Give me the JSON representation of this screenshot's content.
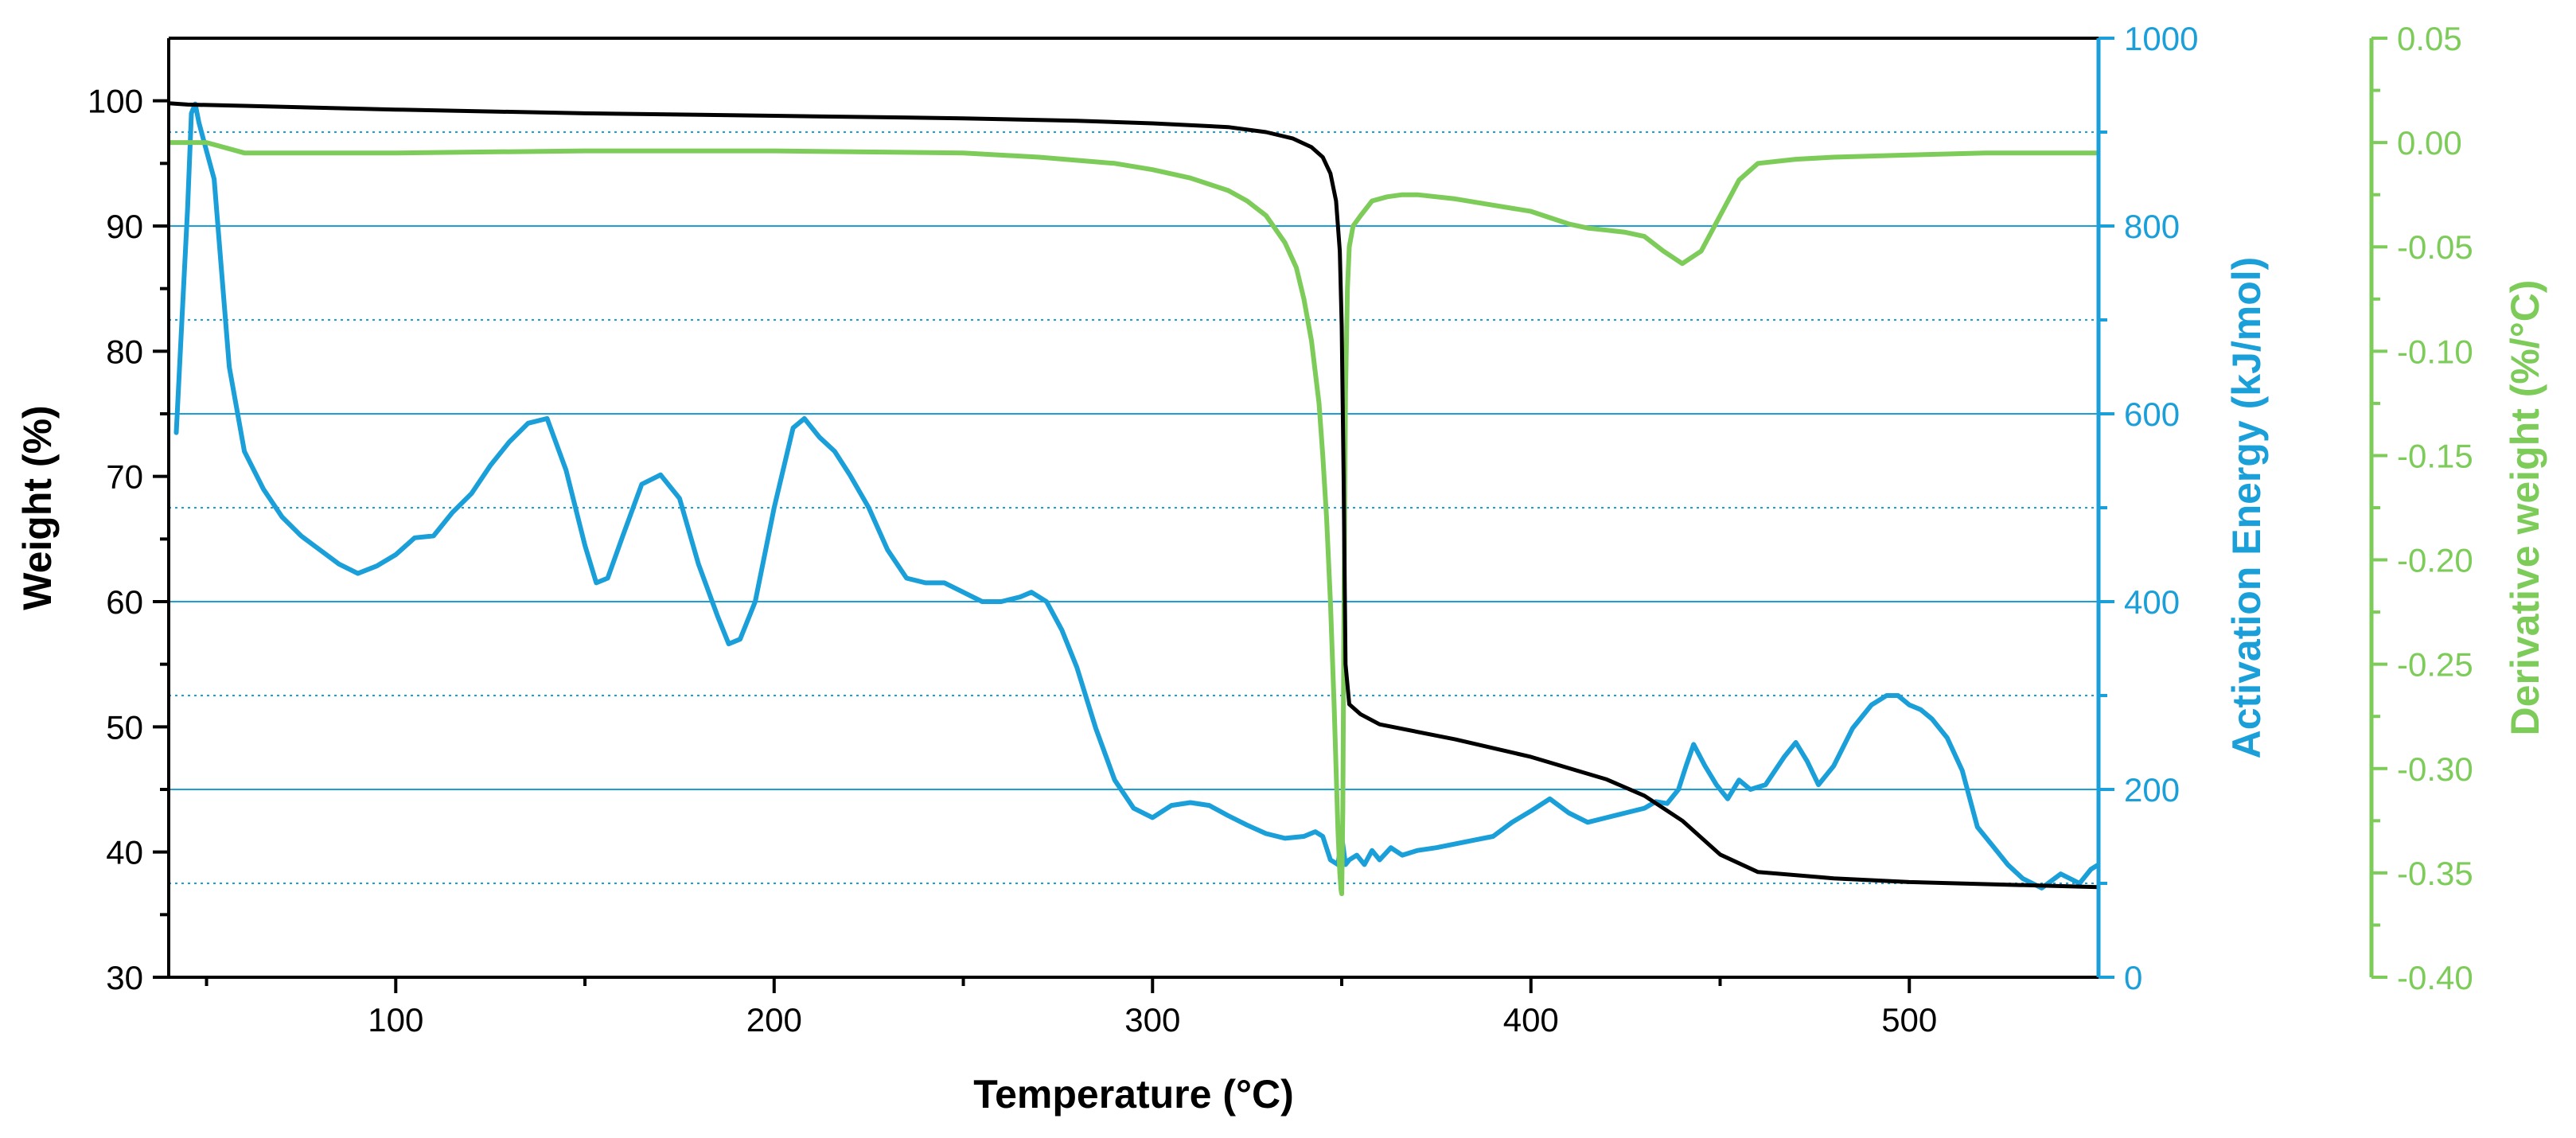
{
  "chart_data": {
    "type": "line",
    "xlabel": "Temperature (°C)",
    "xlim": [
      40,
      550
    ],
    "x_ticks": [
      "100",
      "200",
      "300",
      "400",
      "500"
    ],
    "axes": {
      "weight": {
        "label": "Weight (%)",
        "lim": [
          30,
          105
        ],
        "ticks": [
          "30",
          "40",
          "50",
          "60",
          "70",
          "80",
          "90",
          "100"
        ],
        "color": "#000000"
      },
      "activation": {
        "label": "Activation Energy (kJ/mol)",
        "lim": [
          0,
          1000
        ],
        "ticks": [
          "0",
          "200",
          "400",
          "600",
          "800",
          "1000"
        ],
        "color": "#1a9fd9"
      },
      "derivative": {
        "label": "Derivative weight (%/°C)",
        "lim": [
          -0.4,
          0.05
        ],
        "ticks": [
          "0.05",
          "0.00",
          "-0.05",
          "-0.10",
          "-0.15",
          "-0.20",
          "-0.25",
          "-0.30",
          "-0.35",
          "-0.40"
        ],
        "color": "#7dcc5a"
      }
    },
    "grid": {
      "solid_activation_values": [
        200,
        400,
        600,
        800
      ],
      "dotted_activation_values": [
        100,
        300,
        500,
        700,
        900
      ]
    },
    "series": [
      {
        "name": "Weight",
        "axis": "weight",
        "color": "#000000",
        "x": [
          40,
          45,
          60,
          100,
          150,
          200,
          250,
          280,
          300,
          320,
          330,
          337,
          342,
          345,
          347,
          348.5,
          349.5,
          350,
          350.5,
          351,
          352,
          355,
          360,
          380,
          400,
          420,
          430,
          440,
          450,
          460,
          480,
          500,
          525,
          550
        ],
        "y": [
          99.8,
          99.7,
          99.6,
          99.3,
          99.0,
          98.8,
          98.6,
          98.4,
          98.2,
          97.9,
          97.5,
          97.0,
          96.3,
          95.5,
          94.2,
          92.0,
          88.0,
          82.0,
          70.0,
          55.0,
          51.8,
          51.0,
          50.2,
          49.0,
          47.6,
          45.8,
          44.5,
          42.5,
          39.8,
          38.4,
          37.9,
          37.6,
          37.4,
          37.2
        ]
      },
      {
        "name": "Activation Energy",
        "axis": "activation",
        "color": "#1a9fd9",
        "x": [
          42,
          43.5,
          45,
          46,
          47,
          48,
          50,
          52,
          54,
          56,
          60,
          65,
          70,
          75,
          80,
          85,
          90,
          95,
          100,
          105,
          110,
          115,
          120,
          125,
          130,
          135,
          140,
          145,
          150,
          153,
          156,
          160,
          165,
          170,
          175,
          180,
          185,
          188,
          191,
          195,
          200,
          205,
          208,
          212,
          216,
          220,
          225,
          230,
          235,
          240,
          245,
          250,
          255,
          260,
          265,
          268,
          272,
          276,
          280,
          285,
          290,
          295,
          300,
          305,
          310,
          315,
          320,
          325,
          330,
          335,
          340,
          343,
          345,
          347,
          349,
          350,
          351,
          352,
          354,
          356,
          358,
          360,
          363,
          366,
          370,
          375,
          380,
          385,
          390,
          395,
          400,
          405,
          410,
          415,
          420,
          425,
          430,
          433,
          436,
          439,
          441,
          443,
          446,
          449,
          452,
          455,
          458,
          462,
          467,
          470,
          473,
          476,
          480,
          485,
          490,
          494,
          497,
          500,
          503,
          506,
          510,
          514,
          518,
          522,
          526,
          530,
          535,
          540,
          545,
          548,
          550
        ],
        "y": [
          580,
          700,
          820,
          920,
          930,
          910,
          880,
          850,
          750,
          650,
          560,
          520,
          490,
          470,
          455,
          440,
          430,
          438,
          450,
          468,
          470,
          495,
          515,
          545,
          570,
          590,
          595,
          540,
          460,
          420,
          425,
          470,
          525,
          535,
          510,
          440,
          385,
          355,
          360,
          400,
          500,
          585,
          595,
          575,
          560,
          535,
          500,
          455,
          425,
          420,
          420,
          410,
          400,
          400,
          405,
          410,
          400,
          370,
          330,
          265,
          210,
          180,
          170,
          183,
          186,
          183,
          172,
          162,
          153,
          148,
          150,
          155,
          150,
          125,
          120,
          150,
          120,
          125,
          130,
          120,
          135,
          125,
          138,
          130,
          135,
          138,
          142,
          146,
          150,
          165,
          177,
          190,
          175,
          165,
          170,
          175,
          180,
          187,
          185,
          200,
          225,
          248,
          225,
          205,
          190,
          210,
          200,
          205,
          235,
          250,
          230,
          205,
          225,
          265,
          290,
          300,
          300,
          290,
          285,
          275,
          255,
          220,
          160,
          140,
          120,
          105,
          95,
          110,
          100,
          115,
          120
        ]
      },
      {
        "name": "Derivative weight",
        "axis": "derivative",
        "color": "#7dcc5a",
        "x": [
          40,
          45,
          48,
          50,
          60,
          100,
          150,
          200,
          250,
          270,
          290,
          300,
          310,
          320,
          325,
          330,
          335,
          338,
          340,
          342,
          344,
          345,
          346,
          347,
          348,
          348.5,
          349,
          349.5,
          349.8,
          350,
          350.3,
          350.6,
          351,
          351.5,
          352,
          353,
          355,
          358,
          362,
          366,
          370,
          380,
          390,
          400,
          405,
          410,
          415,
          420,
          425,
          430,
          435,
          440,
          445,
          450,
          455,
          460,
          470,
          480,
          500,
          520,
          550
        ],
        "y": [
          0.0,
          0.0,
          0.0,
          0.0,
          -0.005,
          -0.005,
          -0.004,
          -0.004,
          -0.005,
          -0.007,
          -0.01,
          -0.013,
          -0.017,
          -0.023,
          -0.028,
          -0.035,
          -0.048,
          -0.06,
          -0.075,
          -0.095,
          -0.125,
          -0.15,
          -0.18,
          -0.22,
          -0.27,
          -0.3,
          -0.33,
          -0.35,
          -0.358,
          -0.36,
          -0.32,
          -0.22,
          -0.12,
          -0.07,
          -0.05,
          -0.04,
          -0.035,
          -0.028,
          -0.026,
          -0.025,
          -0.025,
          -0.027,
          -0.03,
          -0.033,
          -0.036,
          -0.039,
          -0.041,
          -0.042,
          -0.043,
          -0.045,
          -0.052,
          -0.058,
          -0.052,
          -0.035,
          -0.018,
          -0.01,
          -0.008,
          -0.007,
          -0.006,
          -0.005,
          -0.005
        ]
      }
    ]
  }
}
